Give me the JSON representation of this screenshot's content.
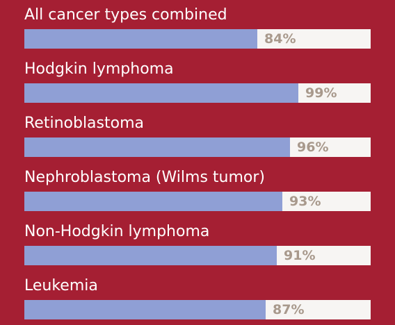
{
  "chart_data": {
    "type": "bar",
    "categories": [
      "All cancer types combined",
      "Hodgkin lymphoma",
      "Retinoblastoma",
      "Nephroblastoma (Wilms tumor)",
      "Non-Hodgkin lymphoma",
      "Leukemia"
    ],
    "values": [
      84,
      99,
      96,
      93,
      91,
      87
    ],
    "value_labels": [
      "84%",
      "99%",
      "96%",
      "93%",
      "91%",
      "87%"
    ],
    "xlim": [
      0,
      125
    ],
    "orientation": "horizontal",
    "grid": false
  },
  "colors": {
    "background": "#a51f33",
    "bar_fill": "#8f9fd5",
    "track": "#f7f5f3",
    "label_text": "#ffffff",
    "value_text": "#a8998c"
  }
}
